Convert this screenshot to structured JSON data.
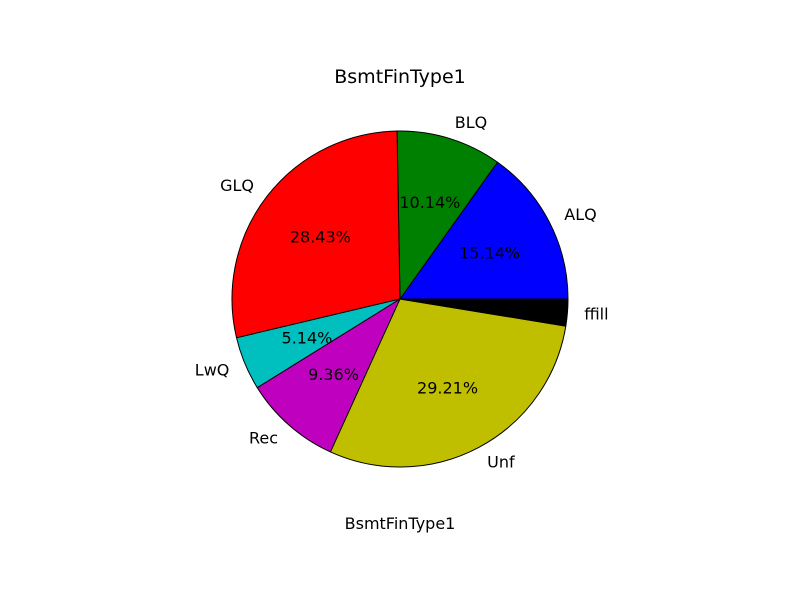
{
  "chart_data": {
    "type": "pie",
    "title": "BsmtFinType1",
    "xlabel": "BsmtFinType1",
    "slices": [
      {
        "label": "ALQ",
        "pct_label": "15.14%",
        "value": 15.14,
        "color": "#0000ff"
      },
      {
        "label": "BLQ",
        "pct_label": "10.14%",
        "value": 10.14,
        "color": "#008000"
      },
      {
        "label": "GLQ",
        "pct_label": "28.43%",
        "value": 28.43,
        "color": "#ff0000"
      },
      {
        "label": "LwQ",
        "pct_label": "5.14%",
        "value": 5.14,
        "color": "#00bfbf"
      },
      {
        "label": "Rec",
        "pct_label": "9.36%",
        "value": 9.36,
        "color": "#bf00bf"
      },
      {
        "label": "Unf",
        "pct_label": "29.21%",
        "value": 29.21,
        "color": "#bfbf00"
      },
      {
        "label": "ffill",
        "pct_label": "",
        "value": 2.58,
        "color": "#000000"
      }
    ]
  }
}
